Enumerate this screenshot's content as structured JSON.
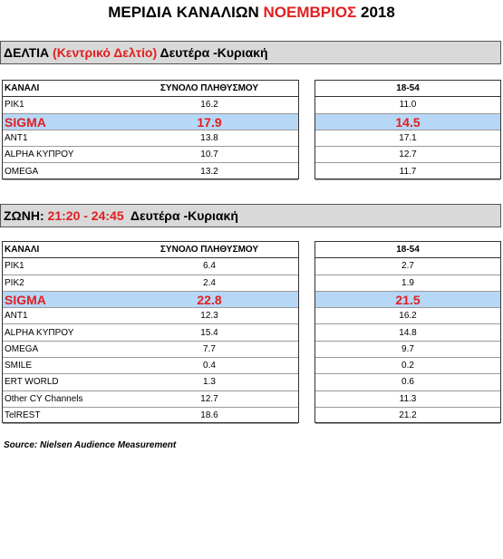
{
  "title": [
    "ΜΕΡΙΔΙΑ ΚΑΝΑΛΙΩΝ ",
    "ΝΟΕΜΒΡΙΟΣ",
    " 2018"
  ],
  "sections": [
    {
      "header": [
        "ΔΕΛΤΙΑ ",
        "(Κεντρικό Δελτίο)",
        " Δευτέρα -Κυριακή"
      ],
      "columns": [
        "ΚΑΝΑΛΙ",
        "ΣΥΝΟΛΟ ΠΛΗΘΥΣΜΟΥ",
        "18-54"
      ],
      "rows": [
        [
          "ΡΙΚ1",
          "16.2",
          "11.0"
        ],
        [
          "SIGMA",
          "17.9",
          "14.5"
        ],
        [
          "ANT1",
          "13.8",
          "17.1"
        ],
        [
          "ALPHA ΚΥΠΡΟΥ",
          "10.7",
          "12.7"
        ],
        [
          "OMEGA",
          "13.2",
          "11.7"
        ]
      ]
    },
    {
      "header": [
        "ΖΩΝΗ:",
        " 21:20 - 24:45",
        "  Δευτέρα -Κυριακή"
      ],
      "columns": [
        "ΚΑΝΑΛΙ",
        "ΣΥΝΟΛΟ ΠΛΗΘΥΣΜΟΥ",
        "18-54"
      ],
      "rows": [
        [
          "ΡΙΚ1",
          "6.4",
          "2.7"
        ],
        [
          "ΡΙΚ2",
          "2.4",
          "1.9"
        ],
        [
          "SIGMA",
          "22.8",
          "21.5"
        ],
        [
          "ANT1",
          "12.3",
          "16.2"
        ],
        [
          "ALPHA ΚΥΠΡΟΥ",
          "15.4",
          "14.8"
        ],
        [
          "OMEGA",
          "7.7",
          "9.7"
        ],
        [
          "SMILE",
          "0.4",
          "0.2"
        ],
        [
          "ERT WORLD",
          "1.3",
          "0.6"
        ],
        [
          "Other CY Channels",
          "12.7",
          "11.3"
        ],
        [
          "TelREST",
          "18.6",
          "21.2"
        ]
      ]
    }
  ],
  "source": "Source: Nielsen Audience Measurement"
}
